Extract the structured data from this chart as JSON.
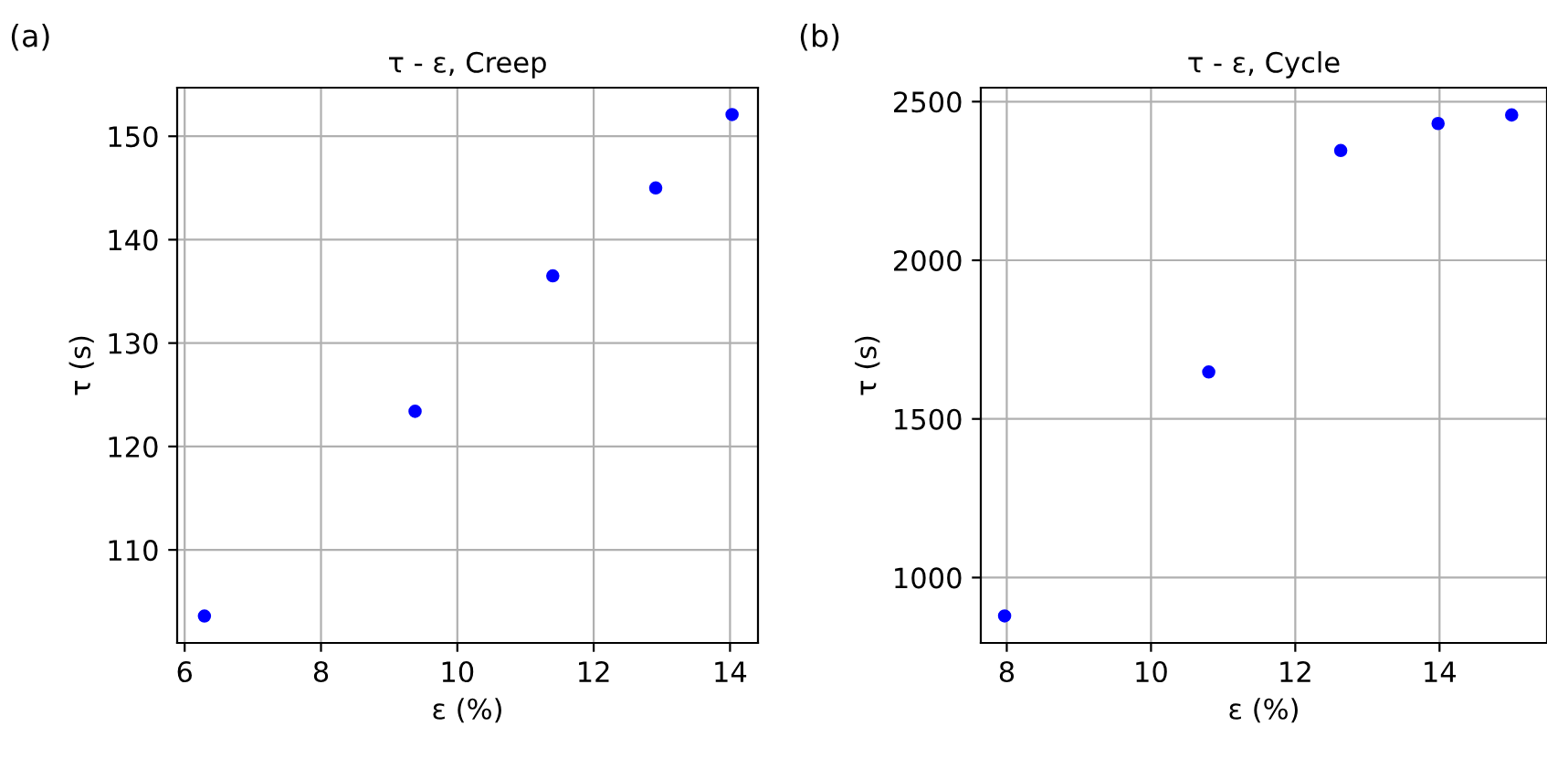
{
  "chart_data": [
    {
      "type": "scatter",
      "title": "τ - ε, Creep",
      "xlabel": "ε (%)",
      "ylabel": "τ (s)",
      "annotations": [
        "(a)"
      ],
      "x": [
        6.29,
        9.38,
        11.4,
        12.91,
        14.03
      ],
      "series": [
        {
          "color": "#0000ff",
          "values": [
            103.6,
            123.4,
            136.5,
            145.0,
            152.1
          ]
        }
      ],
      "xlim": [
        5.89,
        14.41
      ],
      "ylim": [
        101.0,
        154.7
      ],
      "xticks": [
        6,
        8,
        10,
        12,
        14
      ],
      "yticks": [
        110,
        120,
        130,
        140,
        150
      ],
      "grid": true,
      "marker": "circle"
    },
    {
      "type": "scatter",
      "title": "τ - ε, Cycle",
      "xlabel": "ε (%)",
      "ylabel": "τ (s)",
      "annotations": [
        "(b)"
      ],
      "x": [
        7.97,
        10.8,
        12.63,
        13.98,
        15.0
      ],
      "series": [
        {
          "color": "#0000ff",
          "values": [
            879,
            1648,
            2346,
            2431,
            2458
          ]
        }
      ],
      "xlim": [
        7.64,
        15.49
      ],
      "ylim": [
        794,
        2544
      ],
      "xticks": [
        8,
        10,
        12,
        14
      ],
      "yticks": [
        1000,
        1500,
        2000,
        2500
      ],
      "grid": true,
      "marker": "circle"
    }
  ]
}
